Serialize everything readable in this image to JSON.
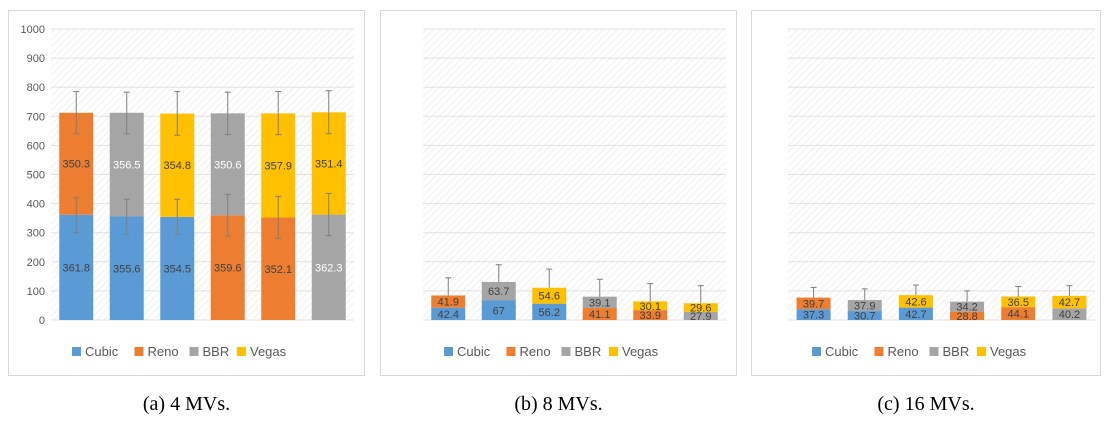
{
  "legend": [
    "Cubic",
    "Reno",
    "BBR",
    "Vegas"
  ],
  "colors": {
    "Cubic": "#5b9bd5",
    "Reno": "#ed7d31",
    "BBR": "#a5a5a5",
    "Vegas": "#ffc000"
  },
  "captions": [
    "(a)  4 MVs.",
    "(b)  8 MVs.",
    "(c)  16 MVs."
  ],
  "chart_data": [
    {
      "type": "bar",
      "stacked": true,
      "ylim": [
        0,
        1000
      ],
      "yticks": [
        "0",
        "100",
        "200",
        "300",
        "400",
        "500",
        "600",
        "700",
        "800",
        "900",
        "1000"
      ],
      "show_yticks": true,
      "legend_position": "bottom",
      "error_bars": true,
      "bars": [
        {
          "segments": [
            {
              "series": "Cubic",
              "value": 361.8
            },
            {
              "series": "Reno",
              "value": 350.3
            }
          ],
          "error_top": 785,
          "error_bottom": 640,
          "error_mid": [
            420,
            300
          ]
        },
        {
          "segments": [
            {
              "series": "Cubic",
              "value": 355.6
            },
            {
              "series": "BBR",
              "value": 356.5
            }
          ],
          "error_top": 783,
          "error_bottom": 640,
          "error_mid": [
            415,
            295
          ]
        },
        {
          "segments": [
            {
              "series": "Cubic",
              "value": 354.5
            },
            {
              "series": "Vegas",
              "value": 354.8
            }
          ],
          "error_top": 785,
          "error_bottom": 635,
          "error_mid": [
            415,
            295
          ]
        },
        {
          "segments": [
            {
              "series": "Reno",
              "value": 359.6
            },
            {
              "series": "BBR",
              "value": 350.6
            }
          ],
          "error_top": 783,
          "error_bottom": 637,
          "error_mid": [
            432,
            288
          ]
        },
        {
          "segments": [
            {
              "series": "Reno",
              "value": 352.1
            },
            {
              "series": "Vegas",
              "value": 357.9
            }
          ],
          "error_top": 785,
          "error_bottom": 637,
          "error_mid": [
            425,
            280
          ]
        },
        {
          "segments": [
            {
              "series": "BBR",
              "value": 362.3
            },
            {
              "series": "Vegas",
              "value": 351.4
            }
          ],
          "error_top": 788,
          "error_bottom": 640,
          "error_mid": [
            435,
            290
          ]
        }
      ]
    },
    {
      "type": "bar",
      "stacked": true,
      "ylim": [
        0,
        1000
      ],
      "show_yticks": false,
      "legend_position": "bottom",
      "error_bars": true,
      "bars": [
        {
          "segments": [
            {
              "series": "Cubic",
              "value": 42.4
            },
            {
              "series": "Reno",
              "value": 41.9
            }
          ],
          "error_top": 145
        },
        {
          "segments": [
            {
              "series": "Cubic",
              "value": 67
            },
            {
              "series": "BBR",
              "value": 63.7
            }
          ],
          "error_top": 190
        },
        {
          "segments": [
            {
              "series": "Cubic",
              "value": 56.2
            },
            {
              "series": "Vegas",
              "value": 54.6
            }
          ],
          "error_top": 175
        },
        {
          "segments": [
            {
              "series": "Reno",
              "value": 41.1
            },
            {
              "series": "BBR",
              "value": 39.1
            }
          ],
          "error_top": 140
        },
        {
          "segments": [
            {
              "series": "Reno",
              "value": 33.9
            },
            {
              "series": "Vegas",
              "value": 30.1
            }
          ],
          "error_top": 125
        },
        {
          "segments": [
            {
              "series": "BBR",
              "value": 27.9
            },
            {
              "series": "Vegas",
              "value": 29.6
            }
          ],
          "error_top": 118
        }
      ]
    },
    {
      "type": "bar",
      "stacked": true,
      "ylim": [
        0,
        1000
      ],
      "show_yticks": false,
      "legend_position": "bottom",
      "error_bars": true,
      "bars": [
        {
          "segments": [
            {
              "series": "Cubic",
              "value": 37.3
            },
            {
              "series": "Reno",
              "value": 39.7
            }
          ],
          "error_top": 112
        },
        {
          "segments": [
            {
              "series": "Cubic",
              "value": 30.7
            },
            {
              "series": "BBR",
              "value": 37.9
            }
          ],
          "error_top": 107
        },
        {
          "segments": [
            {
              "series": "Cubic",
              "value": 42.7
            },
            {
              "series": "Vegas",
              "value": 42.6
            }
          ],
          "error_top": 120
        },
        {
          "segments": [
            {
              "series": "Reno",
              "value": 28.8
            },
            {
              "series": "BBR",
              "value": 34.2
            }
          ],
          "error_top": 100
        },
        {
          "segments": [
            {
              "series": "Reno",
              "value": 44.1
            },
            {
              "series": "Vegas",
              "value": 36.5
            }
          ],
          "error_top": 115
        },
        {
          "segments": [
            {
              "series": "BBR",
              "value": 40.2
            },
            {
              "series": "Vegas",
              "value": 42.7
            }
          ],
          "error_top": 118
        }
      ]
    }
  ]
}
